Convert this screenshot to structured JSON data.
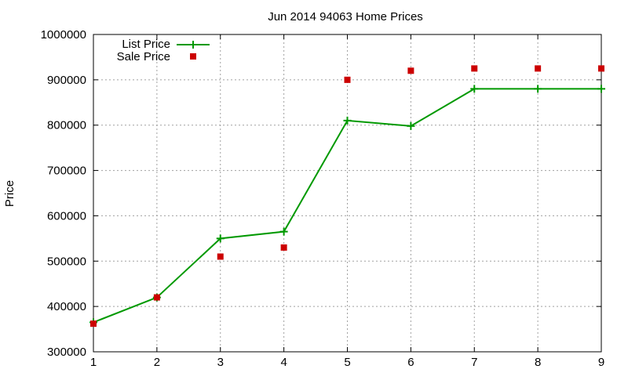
{
  "chart_data": {
    "type": "line",
    "title": "Jun 2014 94063 Home Prices",
    "xlabel": "",
    "ylabel": "Price",
    "xlim": [
      1,
      9
    ],
    "ylim": [
      300000,
      1000000
    ],
    "x_ticks": [
      "1",
      "2",
      "3",
      "4",
      "5",
      "6",
      "7",
      "8",
      "9"
    ],
    "y_ticks": [
      "300000",
      "400000",
      "500000",
      "600000",
      "700000",
      "800000",
      "900000",
      "1000000"
    ],
    "grid": true,
    "legend_position": "top-left",
    "series": [
      {
        "name": "List Price",
        "kind": "line+cross",
        "color": "#009900",
        "x": [
          1,
          2,
          3,
          4,
          5,
          6,
          7,
          8,
          9
        ],
        "y": [
          365000,
          420000,
          550000,
          565000,
          810000,
          798000,
          880000,
          880000,
          880000
        ]
      },
      {
        "name": "Sale Price",
        "kind": "square-points",
        "color": "#cc0000",
        "x": [
          1,
          2,
          3,
          4,
          5,
          6,
          7,
          8,
          9
        ],
        "y": [
          362000,
          420000,
          510000,
          530000,
          900000,
          920000,
          925000,
          925000,
          925000
        ]
      }
    ]
  }
}
